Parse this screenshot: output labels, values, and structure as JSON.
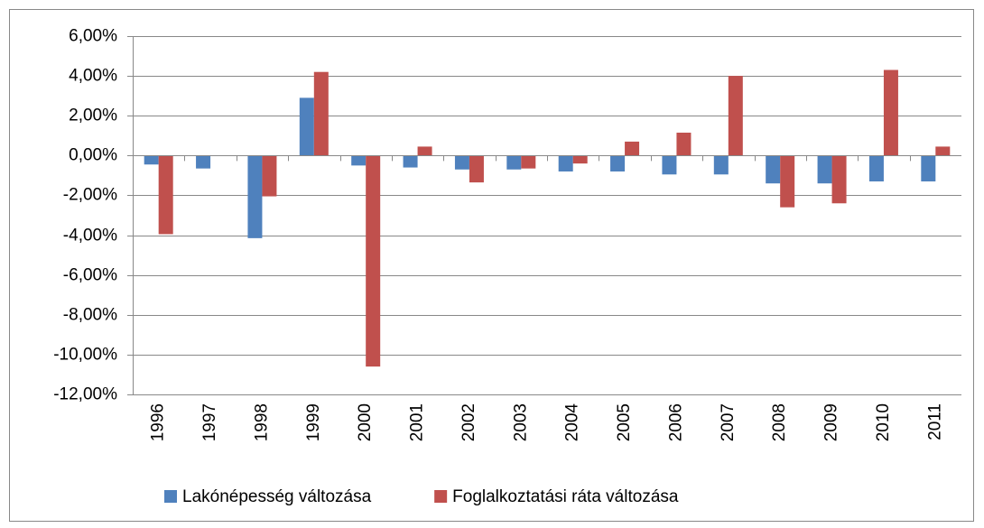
{
  "chart_data": {
    "type": "bar",
    "categories": [
      "1996",
      "1997",
      "1998",
      "1999",
      "2000",
      "2001",
      "2002",
      "2003",
      "2004",
      "2005",
      "2006",
      "2007",
      "2008",
      "2009",
      "2010",
      "2011"
    ],
    "series": [
      {
        "name": "Lakónépesség változása",
        "color": "#4f81bd",
        "values": [
          -0.45,
          -0.65,
          -4.15,
          2.9,
          -0.5,
          -0.6,
          -0.7,
          -0.7,
          -0.8,
          -0.8,
          -0.95,
          -0.95,
          -1.4,
          -1.4,
          -1.3,
          -1.3
        ]
      },
      {
        "name": "Foglalkoztatási ráta változása",
        "color": "#c0504d",
        "values": [
          -3.95,
          0,
          -2.05,
          4.2,
          -10.6,
          0.45,
          -1.35,
          -0.65,
          -0.4,
          0.7,
          1.15,
          4.0,
          -2.6,
          -2.4,
          4.3,
          0.45
        ]
      }
    ],
    "ylim": [
      -12,
      6
    ],
    "yticks": [
      {
        "value": -12,
        "label": "-12,00%"
      },
      {
        "value": -10,
        "label": "-10,00%"
      },
      {
        "value": -8,
        "label": "-8,00%"
      },
      {
        "value": -6,
        "label": "-6,00%"
      },
      {
        "value": -4,
        "label": "-4,00%"
      },
      {
        "value": -2,
        "label": "-2,00%"
      },
      {
        "value": 0,
        "label": "0,00%"
      },
      {
        "value": 2,
        "label": "2,00%"
      },
      {
        "value": 4,
        "label": "4,00%"
      },
      {
        "value": 6,
        "label": "6,00%"
      }
    ],
    "grid": true,
    "legend": "bottom"
  }
}
